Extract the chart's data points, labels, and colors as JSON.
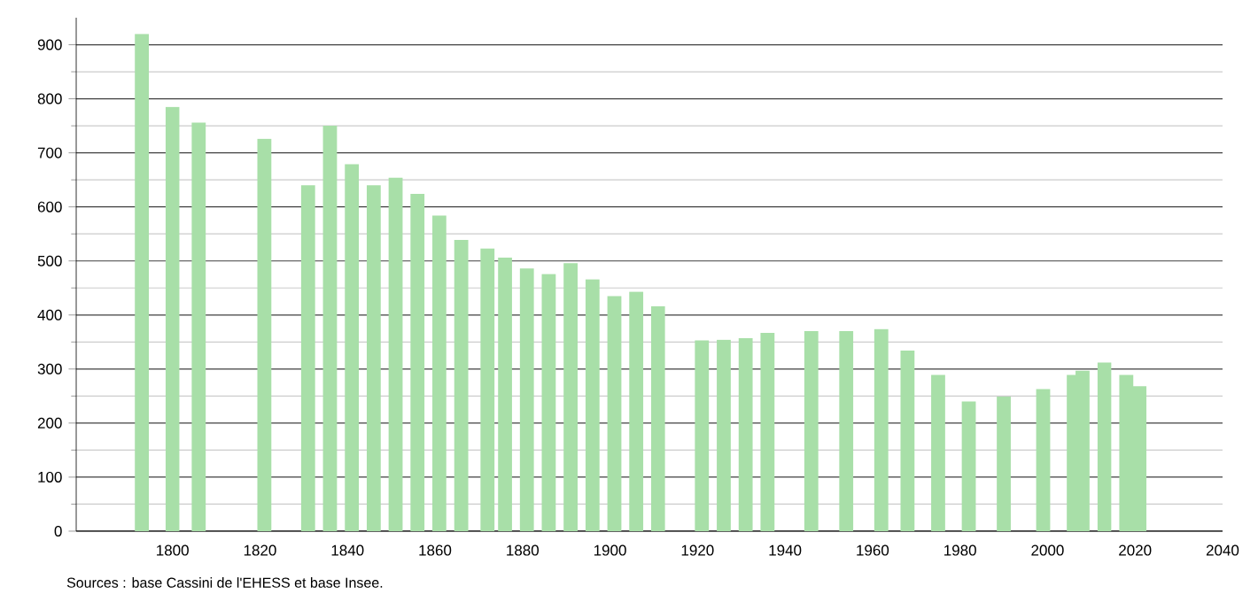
{
  "chart_data": {
    "type": "bar",
    "color": "#a8dfa8",
    "x": [
      1793,
      1800,
      1806,
      1821,
      1831,
      1836,
      1841,
      1846,
      1851,
      1856,
      1861,
      1866,
      1872,
      1876,
      1881,
      1886,
      1891,
      1896,
      1901,
      1906,
      1911,
      1921,
      1926,
      1931,
      1936,
      1946,
      1954,
      1962,
      1968,
      1975,
      1982,
      1990,
      1999,
      2006,
      2008,
      2013,
      2018,
      2021
    ],
    "values": [
      920,
      785,
      756,
      726,
      640,
      750,
      679,
      640,
      654,
      624,
      584,
      539,
      523,
      506,
      486,
      476,
      496,
      466,
      435,
      443,
      416,
      353,
      354,
      357,
      367,
      370,
      370,
      374,
      334,
      289,
      240,
      249,
      263,
      289,
      297,
      312,
      289,
      268
    ],
    "xlim": [
      1778,
      2040
    ],
    "xticks": [
      1800,
      1820,
      1840,
      1860,
      1880,
      1900,
      1920,
      1940,
      1960,
      1980,
      2000,
      2020,
      2040
    ],
    "ylim": [
      0,
      950
    ],
    "yticks": [
      0,
      100,
      200,
      300,
      400,
      500,
      600,
      700,
      800,
      900
    ],
    "grid": "y",
    "annotations": [
      "Sources : base Cassini de l'EHESS et base Insee."
    ]
  }
}
